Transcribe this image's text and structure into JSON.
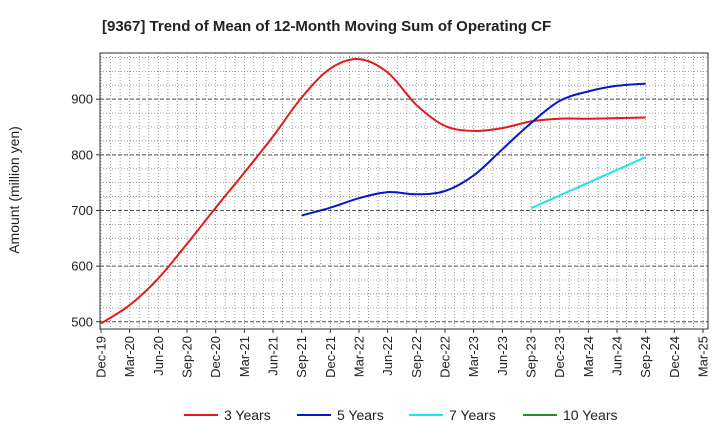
{
  "chart_data": {
    "type": "line",
    "title": "[9367]  Trend of Mean of 12-Month Moving Sum of Operating CF",
    "xlabel": "",
    "ylabel": "Amount (million yen)",
    "ylim": [
      487,
      983
    ],
    "y_ticks": [
      500,
      600,
      700,
      800,
      900
    ],
    "grid": true,
    "legend_position": "bottom",
    "categories": [
      "Dec-19",
      "Mar-20",
      "Jun-20",
      "Sep-20",
      "Dec-20",
      "Mar-21",
      "Jun-21",
      "Sep-21",
      "Dec-21",
      "Mar-22",
      "Jun-22",
      "Sep-22",
      "Dec-22",
      "Mar-23",
      "Jun-23",
      "Sep-23",
      "Dec-23",
      "Mar-24",
      "Jun-24",
      "Sep-24",
      "Dec-24",
      "Mar-25"
    ],
    "series": [
      {
        "name": "3 Years",
        "color": "#e31a1c",
        "values": [
          497,
          530,
          578,
          640,
          705,
          768,
          833,
          903,
          955,
          972,
          948,
          890,
          852,
          843,
          848,
          860,
          865,
          865,
          866,
          867,
          null,
          null
        ]
      },
      {
        "name": "5 Years",
        "color": "#0a17c7",
        "values": [
          null,
          null,
          null,
          null,
          null,
          null,
          null,
          691,
          705,
          722,
          733,
          729,
          735,
          763,
          810,
          857,
          897,
          914,
          924,
          928,
          null,
          null
        ]
      },
      {
        "name": "7 Years",
        "color": "#19e6ef",
        "values": [
          null,
          null,
          null,
          null,
          null,
          null,
          null,
          null,
          null,
          null,
          null,
          null,
          null,
          null,
          null,
          704,
          727,
          750,
          773,
          796,
          null,
          null
        ]
      },
      {
        "name": "10 Years",
        "color": "#2a8a2a",
        "values": [
          null,
          null,
          null,
          null,
          null,
          null,
          null,
          null,
          null,
          null,
          null,
          null,
          null,
          null,
          null,
          null,
          null,
          null,
          null,
          null,
          null,
          null
        ]
      }
    ]
  }
}
